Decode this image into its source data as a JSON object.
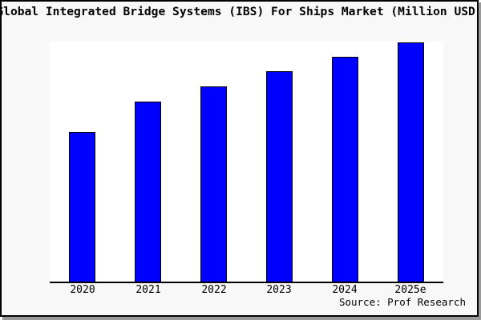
{
  "figure": {
    "background_color": "#f8f8f8",
    "frame_border_color": "#000000",
    "shadow_color": "#9a9a9a"
  },
  "chart_data": {
    "type": "bar",
    "title": "Global Integrated Bridge Systems (IBS) For Ships Market (Million USD)",
    "categories": [
      "2020",
      "2021",
      "2022",
      "2023",
      "2024",
      "2025e"
    ],
    "values": [
      62.3,
      75.0,
      81.3,
      87.7,
      93.7,
      99.7
    ],
    "units": "relative height, % of plot (no y-axis scale shown in image)",
    "xlabel": "",
    "ylabel": "",
    "ylim": [
      0,
      100
    ],
    "grid": false,
    "legend": false,
    "y_axis_shown": false,
    "plot_background": "#ffffff",
    "axis_color": "#000000",
    "bar_color": "#0000ff",
    "bar_border_color": "#000000"
  },
  "source": {
    "text": "Source: Prof Research"
  }
}
